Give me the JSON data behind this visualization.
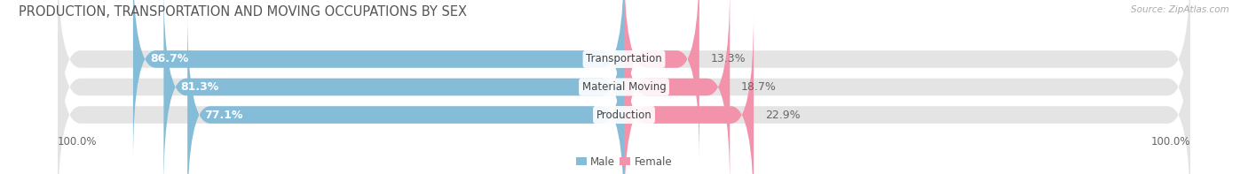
{
  "title": "PRODUCTION, TRANSPORTATION AND MOVING OCCUPATIONS BY SEX",
  "source": "Source: ZipAtlas.com",
  "categories": [
    "Transportation",
    "Material Moving",
    "Production"
  ],
  "male_values": [
    86.7,
    81.3,
    77.1
  ],
  "female_values": [
    13.3,
    18.7,
    22.9
  ],
  "male_color": "#85bcd8",
  "female_color": "#f392ab",
  "bar_bg_color": "#e4e4e4",
  "bar_height": 0.62,
  "bar_gap": 0.12,
  "left_label": "100.0%",
  "right_label": "100.0%",
  "title_fontsize": 10.5,
  "bar_label_fontsize": 9,
  "cat_label_fontsize": 8.5,
  "axis_fontsize": 8.5,
  "source_fontsize": 7.5,
  "legend_fontsize": 8.5,
  "legend_male": "Male",
  "legend_female": "Female"
}
